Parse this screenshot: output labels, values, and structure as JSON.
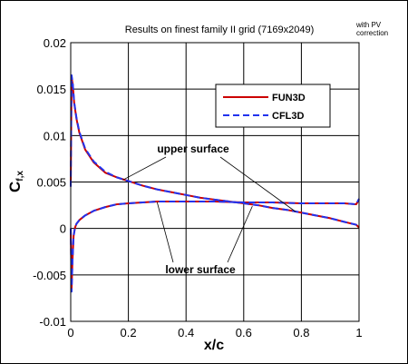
{
  "chart_data": {
    "type": "line",
    "title": "Results on finest family II grid (7169x2049)",
    "note_lines": [
      "with PV",
      "correction"
    ],
    "xlabel": "x/c",
    "ylabel_main": "C",
    "ylabel_sub": "f,x",
    "xlim": [
      0,
      1
    ],
    "ylim": [
      -0.01,
      0.02
    ],
    "x_ticks": [
      0,
      0.2,
      0.4,
      0.6,
      0.8,
      1
    ],
    "x_tick_labels": [
      "0",
      "0.2",
      "0.4",
      "0.6",
      "0.8",
      "1"
    ],
    "y_ticks": [
      -0.01,
      -0.005,
      0,
      0.005,
      0.01,
      0.015,
      0.02
    ],
    "y_tick_labels": [
      "-0.01",
      "-0.005",
      "0",
      "0.005",
      "0.01",
      "0.015",
      "0.02"
    ],
    "grid": true,
    "legend_position": "top-right",
    "annotations": [
      {
        "text": "upper surface",
        "target_x": 0.18,
        "target_y": 0.0052,
        "target2_x": 0.78,
        "target2_y": 0.0018
      },
      {
        "text": "lower surface",
        "target_x": 0.3,
        "target_y": 0.0028,
        "target2_x": 0.63,
        "target2_y": 0.0024
      }
    ],
    "series": [
      {
        "name": "FUN3D",
        "color": "#cc0000",
        "dash": "solid",
        "upper": {
          "x": [
            0,
            0.003,
            0.007,
            0.012,
            0.02,
            0.03,
            0.05,
            0.08,
            0.12,
            0.16,
            0.2,
            0.25,
            0.3,
            0.35,
            0.4,
            0.45,
            0.5,
            0.55,
            0.6,
            0.65,
            0.7,
            0.75,
            0.8,
            0.85,
            0.9,
            0.95,
            0.99,
            1
          ],
          "y": [
            0.0045,
            0.0163,
            0.0155,
            0.0135,
            0.0118,
            0.0103,
            0.0085,
            0.0071,
            0.006,
            0.0055,
            0.0051,
            0.0046,
            0.0042,
            0.0039,
            0.0036,
            0.0033,
            0.0031,
            0.0029,
            0.0027,
            0.0025,
            0.0022,
            0.002,
            0.0017,
            0.0014,
            0.0011,
            0.0007,
            0.0004,
            0.0001
          ]
        },
        "lower": {
          "x": [
            0,
            0.003,
            0.006,
            0.01,
            0.015,
            0.02,
            0.03,
            0.05,
            0.08,
            0.12,
            0.16,
            0.2,
            0.25,
            0.3,
            0.4,
            0.5,
            0.6,
            0.7,
            0.8,
            0.9,
            0.95,
            0.99,
            1
          ],
          "y": [
            0.0,
            -0.0065,
            -0.0035,
            -0.0008,
            0.0001,
            0.0005,
            0.0009,
            0.0014,
            0.0019,
            0.0023,
            0.0026,
            0.0027,
            0.0028,
            0.0029,
            0.0029,
            0.0029,
            0.0028,
            0.0028,
            0.0027,
            0.0027,
            0.0027,
            0.0026,
            0.0031
          ]
        }
      },
      {
        "name": "CFL3D",
        "color": "#2233ee",
        "dash": "dashed",
        "upper": {
          "x": [
            0,
            0.003,
            0.007,
            0.012,
            0.02,
            0.03,
            0.05,
            0.08,
            0.12,
            0.16,
            0.2,
            0.25,
            0.3,
            0.35,
            0.4,
            0.45,
            0.5,
            0.55,
            0.6,
            0.65,
            0.7,
            0.75,
            0.8,
            0.85,
            0.9,
            0.95,
            0.99,
            1
          ],
          "y": [
            0.0045,
            0.0165,
            0.0156,
            0.0136,
            0.0119,
            0.0104,
            0.0086,
            0.0072,
            0.0061,
            0.0055,
            0.0051,
            0.0046,
            0.0042,
            0.0039,
            0.0036,
            0.0033,
            0.0031,
            0.0029,
            0.0027,
            0.0025,
            0.0022,
            0.002,
            0.0017,
            0.0014,
            0.0011,
            0.0007,
            0.0004,
            0.0001
          ]
        },
        "lower": {
          "x": [
            0,
            0.003,
            0.006,
            0.01,
            0.015,
            0.02,
            0.03,
            0.05,
            0.08,
            0.12,
            0.16,
            0.2,
            0.25,
            0.3,
            0.4,
            0.5,
            0.6,
            0.7,
            0.8,
            0.9,
            0.95,
            0.99,
            1
          ],
          "y": [
            0.0,
            -0.0068,
            -0.0036,
            -0.0008,
            0.0001,
            0.0005,
            0.0009,
            0.0014,
            0.0019,
            0.0023,
            0.0026,
            0.0027,
            0.0028,
            0.0029,
            0.0029,
            0.0029,
            0.0028,
            0.0028,
            0.0027,
            0.0027,
            0.0027,
            0.0026,
            0.0032
          ]
        }
      }
    ]
  }
}
